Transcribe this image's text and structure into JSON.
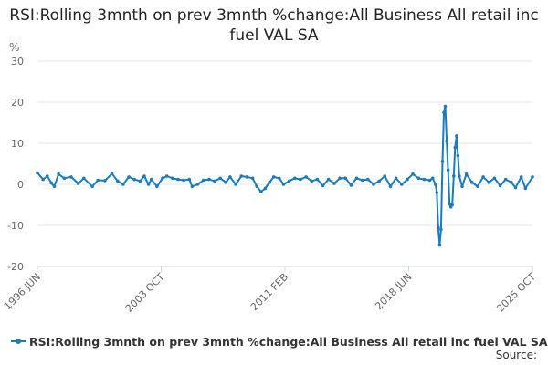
{
  "title": "RSI:Rolling 3mnth on prev 3mnth %change:All Business All retail inc fuel VAL SA",
  "legend_label": "RSI:Rolling 3mnth on prev 3mnth %change:All Business All retail inc fuel VAL SA",
  "source_label": "Source:",
  "y_unit": "%",
  "colors": {
    "series": "#1a7bbd",
    "grid": "#e6e6e6",
    "axis": "#ccd6eb",
    "text": "#666666"
  },
  "chart_data": {
    "type": "line",
    "title": "RSI:Rolling 3mnth on prev 3mnth %change:All Business All retail inc fuel VAL SA",
    "ylabel": "%",
    "ylim": [
      -20,
      30
    ],
    "yticks": [
      -20,
      -10,
      0,
      10,
      20,
      30
    ],
    "xlim": [
      "1996-06",
      "2025-10"
    ],
    "xticks": [
      {
        "label": "1996 JUN",
        "date": "1996-06"
      },
      {
        "label": "2003 OCT",
        "date": "2003-10"
      },
      {
        "label": "2011 FEB",
        "date": "2011-02"
      },
      {
        "label": "2018 JUN",
        "date": "2018-06"
      },
      {
        "label": "2025 OCT",
        "date": "2025-10"
      }
    ],
    "grid": true,
    "legend_position": "bottom-left",
    "series": [
      {
        "name": "RSI:Rolling 3mnth on prev 3mnth %change:All Business All retail inc fuel VAL SA",
        "points": [
          [
            "1996-06",
            2.8
          ],
          [
            "1996-10",
            1.2
          ],
          [
            "1997-01",
            2.0
          ],
          [
            "1997-04",
            0.3
          ],
          [
            "1997-06",
            -0.5
          ],
          [
            "1997-09",
            2.5
          ],
          [
            "1998-01",
            1.5
          ],
          [
            "1998-06",
            1.8
          ],
          [
            "1998-11",
            0.2
          ],
          [
            "1999-03",
            1.5
          ],
          [
            "1999-09",
            -0.5
          ],
          [
            "2000-01",
            1.0
          ],
          [
            "2000-06",
            0.9
          ],
          [
            "2000-11",
            2.6
          ],
          [
            "2001-03",
            0.8
          ],
          [
            "2001-07",
            0.0
          ],
          [
            "2001-11",
            1.8
          ],
          [
            "2002-03",
            1.2
          ],
          [
            "2002-07",
            0.8
          ],
          [
            "2002-10",
            2.0
          ],
          [
            "2003-01",
            0.0
          ],
          [
            "2003-03",
            1.2
          ],
          [
            "2003-07",
            -0.5
          ],
          [
            "2003-11",
            1.5
          ],
          [
            "2004-02",
            2.0
          ],
          [
            "2004-06",
            1.5
          ],
          [
            "2004-10",
            1.2
          ],
          [
            "2005-02",
            1.0
          ],
          [
            "2005-06",
            1.2
          ],
          [
            "2005-08",
            -0.5
          ],
          [
            "2005-12",
            0.0
          ],
          [
            "2006-04",
            1.0
          ],
          [
            "2006-08",
            1.2
          ],
          [
            "2006-12",
            0.8
          ],
          [
            "2007-04",
            1.5
          ],
          [
            "2007-08",
            0.5
          ],
          [
            "2007-11",
            1.8
          ],
          [
            "2008-03",
            0.0
          ],
          [
            "2008-07",
            2.0
          ],
          [
            "2008-11",
            1.8
          ],
          [
            "2009-03",
            1.5
          ],
          [
            "2009-06",
            -0.5
          ],
          [
            "2009-09",
            -1.8
          ],
          [
            "2009-12",
            -1.0
          ],
          [
            "2010-03",
            0.5
          ],
          [
            "2010-06",
            1.8
          ],
          [
            "2010-10",
            1.5
          ],
          [
            "2011-01",
            0.0
          ],
          [
            "2011-05",
            0.8
          ],
          [
            "2011-09",
            1.5
          ],
          [
            "2012-01",
            1.2
          ],
          [
            "2012-05",
            1.8
          ],
          [
            "2012-09",
            0.8
          ],
          [
            "2013-01",
            1.2
          ],
          [
            "2013-05",
            -0.3
          ],
          [
            "2013-09",
            1.2
          ],
          [
            "2014-01",
            0.2
          ],
          [
            "2014-05",
            1.5
          ],
          [
            "2014-09",
            1.5
          ],
          [
            "2015-01",
            -0.2
          ],
          [
            "2015-05",
            1.5
          ],
          [
            "2015-09",
            1.0
          ],
          [
            "2016-01",
            1.2
          ],
          [
            "2016-05",
            0.0
          ],
          [
            "2016-09",
            0.8
          ],
          [
            "2017-01",
            2.0
          ],
          [
            "2017-05",
            -0.5
          ],
          [
            "2017-09",
            1.5
          ],
          [
            "2018-01",
            0.0
          ],
          [
            "2018-05",
            1.2
          ],
          [
            "2018-09",
            2.5
          ],
          [
            "2019-01",
            1.5
          ],
          [
            "2019-05",
            1.2
          ],
          [
            "2019-09",
            1.0
          ],
          [
            "2019-11",
            1.5
          ],
          [
            "2020-01",
            0.0
          ],
          [
            "2020-02",
            -2.0
          ],
          [
            "2020-03",
            -10.5
          ],
          [
            "2020-04",
            -14.8
          ],
          [
            "2020-05",
            -11.0
          ],
          [
            "2020-06",
            5.6
          ],
          [
            "2020-07",
            17.5
          ],
          [
            "2020-08",
            19.0
          ],
          [
            "2020-09",
            10.5
          ],
          [
            "2020-10",
            3.5
          ],
          [
            "2020-11",
            -4.8
          ],
          [
            "2020-12",
            -5.5
          ],
          [
            "2021-01",
            -5.0
          ],
          [
            "2021-02",
            2.0
          ],
          [
            "2021-03",
            9.0
          ],
          [
            "2021-04",
            11.8
          ],
          [
            "2021-05",
            7.0
          ],
          [
            "2021-06",
            2.0
          ],
          [
            "2021-08",
            -0.5
          ],
          [
            "2021-11",
            2.5
          ],
          [
            "2022-03",
            0.5
          ],
          [
            "2022-07",
            -0.5
          ],
          [
            "2022-11",
            1.8
          ],
          [
            "2023-03",
            0.5
          ],
          [
            "2023-07",
            1.5
          ],
          [
            "2023-11",
            -0.3
          ],
          [
            "2024-03",
            1.2
          ],
          [
            "2024-07",
            0.5
          ],
          [
            "2024-10",
            -0.8
          ],
          [
            "2025-02",
            1.8
          ],
          [
            "2025-05",
            -1.0
          ],
          [
            "2025-10",
            1.8
          ]
        ]
      }
    ]
  }
}
